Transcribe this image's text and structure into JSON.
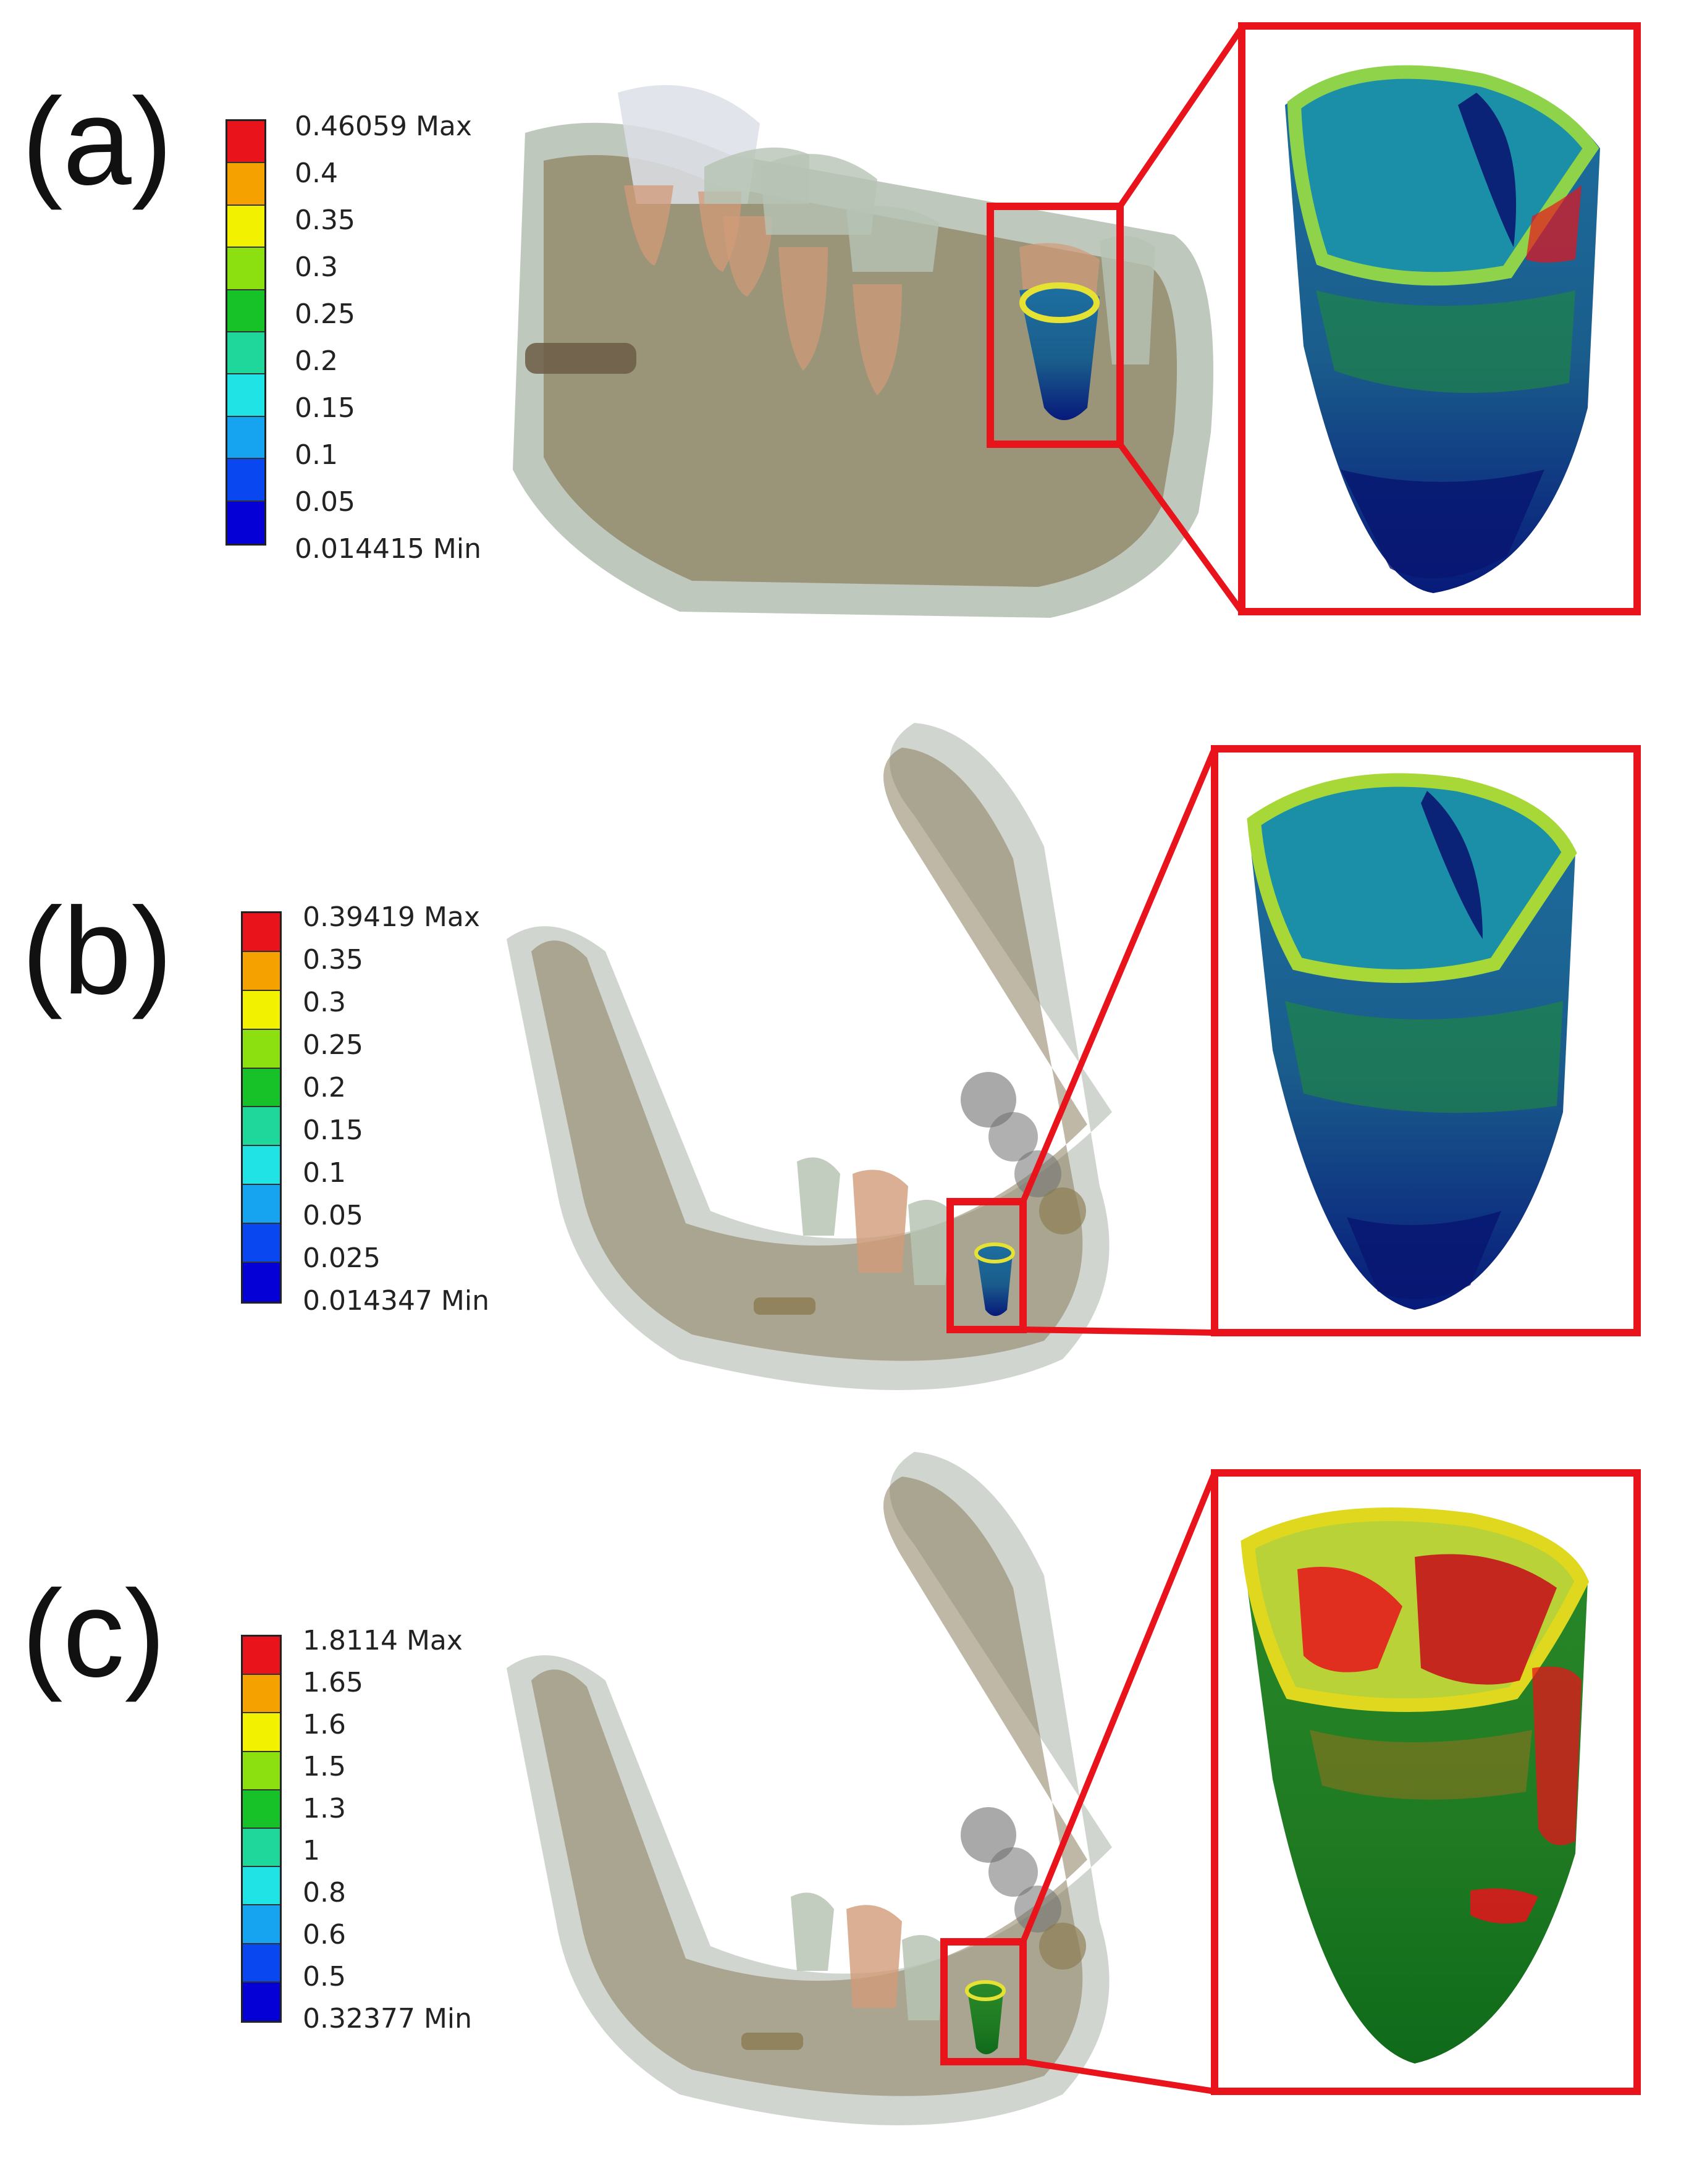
{
  "panels": [
    {
      "label": "(a)",
      "legend": {
        "labels": [
          "0.46059 Max",
          "0.4",
          "0.35",
          "0.3",
          "0.25",
          "0.2",
          "0.15",
          "0.1",
          "0.05",
          "0.014415 Min"
        ]
      }
    },
    {
      "label": "(b)",
      "legend": {
        "labels": [
          "0.39419 Max",
          "0.35",
          "0.3",
          "0.25",
          "0.2",
          "0.15",
          "0.1",
          "0.05",
          "0.025",
          "0.014347 Min"
        ]
      }
    },
    {
      "label": "(c)",
      "legend": {
        "labels": [
          "1.8114 Max",
          "1.65",
          "1.6",
          "1.5",
          "1.3",
          "1",
          "0.8",
          "0.6",
          "0.5",
          "0.32377 Min"
        ]
      }
    }
  ],
  "colors": {
    "scale": [
      "#e8131b",
      "#f5a200",
      "#f2f200",
      "#8de010",
      "#17c229",
      "#1fd79b",
      "#20e3e6",
      "#16a3f0",
      "#0948f0",
      "#0500d6"
    ],
    "highlight_box": "#e8131b",
    "bone": "#8a7d5c",
    "soft_tissue": "#a9b5a7"
  }
}
